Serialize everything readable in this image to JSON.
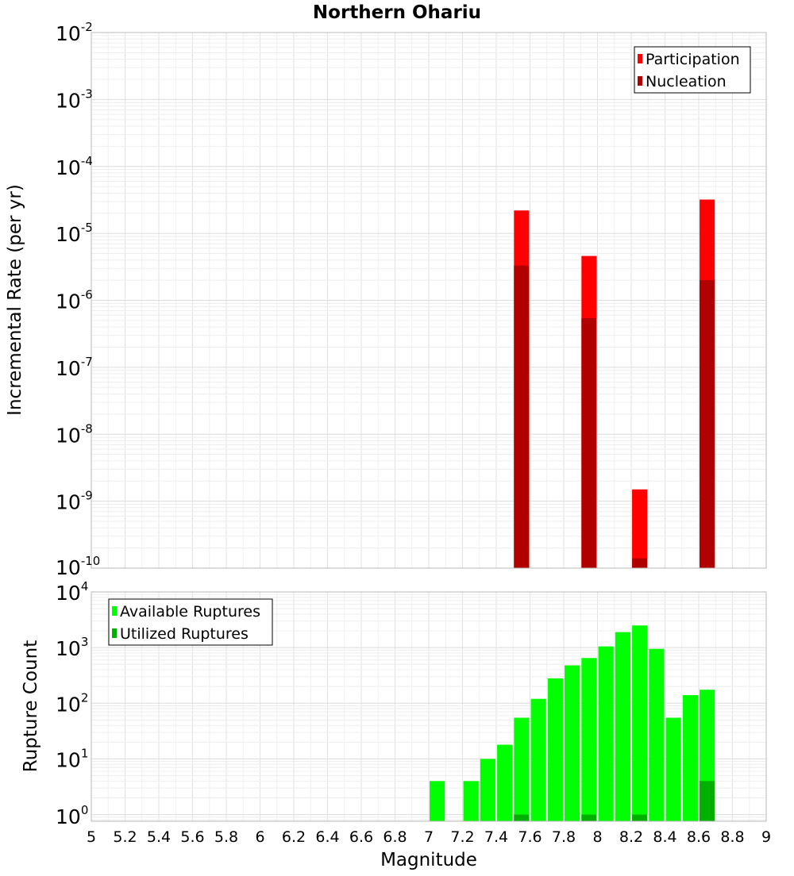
{
  "chart_data": [
    {
      "type": "bar",
      "title": "Northern Ohariu",
      "xlabel": "",
      "ylabel": "Incremental Rate (per yr)",
      "yscale": "log",
      "xlim": [
        5,
        9
      ],
      "ylim_exponents": [
        -10,
        -2
      ],
      "y_tick_base": "10",
      "y_tick_exponents": [
        "-10",
        "-9",
        "-8",
        "-7",
        "-6",
        "-5",
        "-4",
        "-3",
        "-2"
      ],
      "legend_position": "top-right",
      "series": [
        {
          "name": "Participation",
          "color": "#ff0000",
          "points": [
            {
              "x": 7.55,
              "y": 2.2e-05
            },
            {
              "x": 7.95,
              "y": 4.6e-06
            },
            {
              "x": 8.25,
              "y": 1.5e-09
            },
            {
              "x": 8.65,
              "y": 3.2e-05
            }
          ]
        },
        {
          "name": "Nucleation",
          "color": "#b00000",
          "points": [
            {
              "x": 7.55,
              "y": 3.3e-06
            },
            {
              "x": 7.95,
              "y": 5.4e-07
            },
            {
              "x": 8.25,
              "y": 1.4e-10
            },
            {
              "x": 8.65,
              "y": 2e-06
            }
          ]
        }
      ]
    },
    {
      "type": "bar",
      "title": "",
      "xlabel": "Magnitude",
      "ylabel": "Rupture Count",
      "yscale": "log",
      "xlim": [
        5,
        9
      ],
      "ylim_exponents": [
        -0.12,
        4
      ],
      "y_tick_base": "10",
      "y_tick_exponents": [
        "0",
        "1",
        "2",
        "3",
        "4"
      ],
      "x_ticks": [
        "5",
        "5.2",
        "5.4",
        "5.6",
        "5.8",
        "6",
        "6.2",
        "6.4",
        "6.6",
        "6.8",
        "7",
        "7.2",
        "7.4",
        "7.6",
        "7.8",
        "8",
        "8.2",
        "8.4",
        "8.6",
        "8.8",
        "9"
      ],
      "legend_position": "top-left",
      "series": [
        {
          "name": "Available Ruptures",
          "color": "#00ff00",
          "points": [
            {
              "x": 7.05,
              "y": 4
            },
            {
              "x": 7.25,
              "y": 4
            },
            {
              "x": 7.35,
              "y": 10
            },
            {
              "x": 7.45,
              "y": 18
            },
            {
              "x": 7.55,
              "y": 55
            },
            {
              "x": 7.65,
              "y": 120
            },
            {
              "x": 7.75,
              "y": 280
            },
            {
              "x": 7.85,
              "y": 480
            },
            {
              "x": 7.95,
              "y": 650
            },
            {
              "x": 8.05,
              "y": 1050
            },
            {
              "x": 8.15,
              "y": 1900
            },
            {
              "x": 8.25,
              "y": 2500
            },
            {
              "x": 8.35,
              "y": 950
            },
            {
              "x": 8.45,
              "y": 55
            },
            {
              "x": 8.55,
              "y": 140
            },
            {
              "x": 8.65,
              "y": 175
            }
          ]
        },
        {
          "name": "Utilized Ruptures",
          "color": "#00b000",
          "points": [
            {
              "x": 7.55,
              "y": 1
            },
            {
              "x": 7.95,
              "y": 1
            },
            {
              "x": 8.25,
              "y": 1
            },
            {
              "x": 8.65,
              "y": 4
            }
          ]
        }
      ]
    }
  ]
}
